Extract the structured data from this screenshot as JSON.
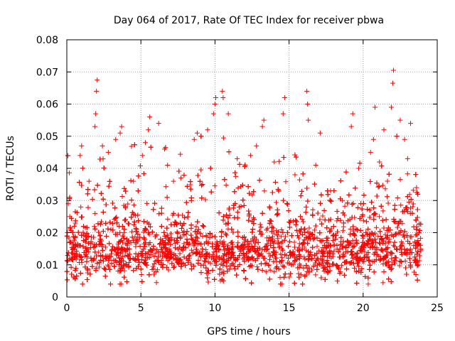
{
  "chart_data": {
    "type": "scatter",
    "title": "Day 064 of 2017, Rate Of TEC Index for receiver pbwa",
    "xlabel": "GPS time / hours",
    "ylabel": "ROTI / TECUs",
    "xlim": [
      0,
      25
    ],
    "ylim": [
      0,
      0.08
    ],
    "x_ticks": [
      "0",
      "5",
      "10",
      "15",
      "20",
      "25"
    ],
    "y_ticks": [
      "0",
      "0.01",
      "0.02",
      "0.03",
      "0.04",
      "0.05",
      "0.06",
      "0.07",
      "0.08"
    ],
    "grid": true,
    "marker": "+",
    "color": "#ff0000",
    "series": [
      {
        "points": [
          [
            0.1,
            0.029
          ],
          [
            0.2,
            0.025
          ],
          [
            0.5,
            0.022
          ],
          [
            0.9,
            0.044
          ],
          [
            1.0,
            0.047
          ],
          [
            1.5,
            0.036
          ],
          [
            1.9,
            0.053
          ],
          [
            1.95,
            0.057
          ],
          [
            2.0,
            0.064
          ],
          [
            2.05,
            0.0675
          ],
          [
            2.4,
            0.047
          ],
          [
            2.8,
            0.045
          ],
          [
            3.3,
            0.049
          ],
          [
            3.6,
            0.051
          ],
          [
            3.7,
            0.053
          ],
          [
            4.5,
            0.036
          ],
          [
            5.1,
            0.044
          ],
          [
            5.3,
            0.048
          ],
          [
            5.5,
            0.052
          ],
          [
            5.6,
            0.056
          ],
          [
            6.2,
            0.054
          ],
          [
            6.6,
            0.046
          ],
          [
            6.8,
            0.041
          ],
          [
            7.2,
            0.036
          ],
          [
            7.7,
            0.037
          ],
          [
            8.6,
            0.049
          ],
          [
            8.8,
            0.051
          ],
          [
            9.5,
            0.052
          ],
          [
            9.9,
            0.057
          ],
          [
            10.0,
            0.06
          ],
          [
            10.05,
            0.062
          ],
          [
            10.5,
            0.064
          ],
          [
            10.55,
            0.062
          ],
          [
            10.9,
            0.057
          ],
          [
            11.5,
            0.043
          ],
          [
            12.4,
            0.044
          ],
          [
            12.8,
            0.047
          ],
          [
            13.2,
            0.053
          ],
          [
            13.3,
            0.055
          ],
          [
            14.0,
            0.042
          ],
          [
            14.6,
            0.057
          ],
          [
            14.7,
            0.062
          ],
          [
            15.4,
            0.038
          ],
          [
            16.2,
            0.064
          ],
          [
            16.25,
            0.06
          ],
          [
            16.3,
            0.055
          ],
          [
            16.8,
            0.041
          ],
          [
            17.1,
            0.051
          ],
          [
            17.8,
            0.033
          ],
          [
            18.6,
            0.03
          ],
          [
            19.2,
            0.053
          ],
          [
            19.3,
            0.057
          ],
          [
            19.7,
            0.04
          ],
          [
            20.5,
            0.045
          ],
          [
            20.7,
            0.049
          ],
          [
            20.8,
            0.059
          ],
          [
            21.1,
            0.042
          ],
          [
            21.4,
            0.052
          ],
          [
            21.9,
            0.059
          ],
          [
            22.0,
            0.0665
          ],
          [
            22.05,
            0.0705
          ],
          [
            22.5,
            0.055
          ],
          [
            22.8,
            0.049
          ],
          [
            23.0,
            0.043
          ],
          [
            23.2,
            0.054
          ],
          [
            23.6,
            0.034
          ]
        ]
      }
    ]
  }
}
